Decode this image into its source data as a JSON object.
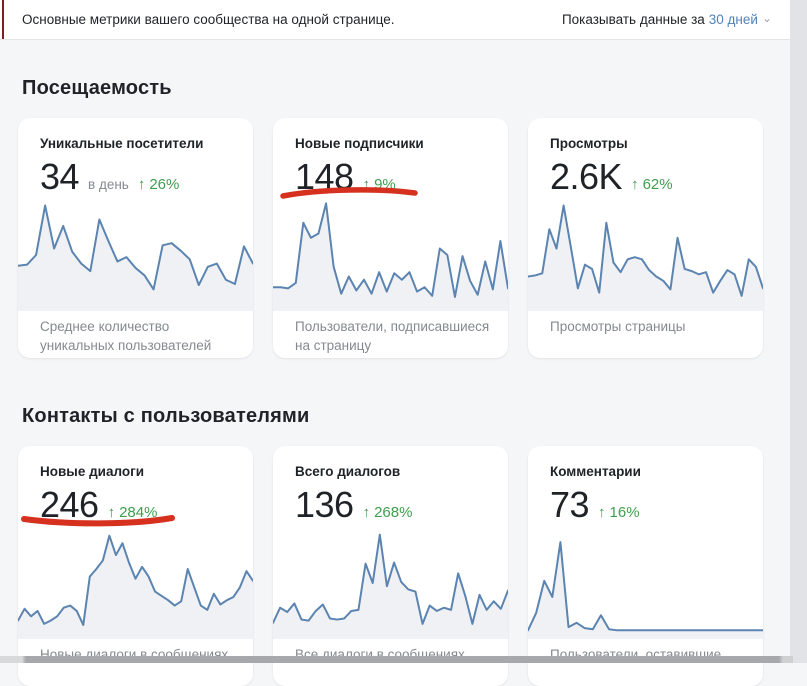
{
  "header": {
    "description": "Основные метрики вашего сообщества на одной странице.",
    "period_label": "Показывать данные за",
    "period_value": "30 дней"
  },
  "icons": {
    "arrow_up": "↑",
    "chevron_down": "⌄"
  },
  "colors": {
    "bg": "#f5f6f8",
    "card_bg": "#ffffff",
    "text": "#1f2227",
    "muted": "#85898f",
    "green": "#3f9e4d",
    "link_blue": "#5181b8",
    "spark_line": "#5b84b1",
    "spark_fill": "#f0f1f4",
    "marker_red": "#d6301f",
    "divider": "#e3e4e8",
    "gutter": "#e2e3e6",
    "bottom_bar": "#a6a8ab",
    "left_tick": "#7a2020"
  },
  "sections": [
    {
      "title": "Посещаемость",
      "cards": [
        {
          "title": "Уникальные посетители",
          "value": "34",
          "value_suffix": "в день",
          "delta": "26%",
          "caption": "Среднее количество уникальных пользователей",
          "underlined": false
        },
        {
          "title": "Новые подписчики",
          "value": "148",
          "delta": "9%",
          "caption": "Пользователи, подписавшиеся на страницу",
          "underlined": true
        },
        {
          "title": "Просмотры",
          "value": "2.6K",
          "delta": "62%",
          "caption": "Просмотры страницы",
          "underlined": false
        }
      ]
    },
    {
      "title": "Контакты с пользователями",
      "cards": [
        {
          "title": "Новые диалоги",
          "value": "246",
          "delta": "284%",
          "caption": "Новые диалоги в сообщениях",
          "underlined": true
        },
        {
          "title": "Всего диалогов",
          "value": "136",
          "delta": "268%",
          "caption": "Все диалоги в сообщениях",
          "underlined": false
        },
        {
          "title": "Комментарии",
          "value": "73",
          "delta": "16%",
          "caption": "Пользователи, оставившие",
          "underlined": false
        }
      ]
    }
  ],
  "chart_data": [
    {
      "type": "line",
      "title": "Уникальные посетители",
      "x": "30 дней (без подписей осей)",
      "ylim": [
        0,
        10
      ],
      "unit": "relative",
      "values": [
        4.0,
        4.1,
        5.0,
        9.6,
        5.6,
        7.7,
        5.3,
        4.2,
        3.5,
        8.3,
        6.3,
        4.4,
        4.8,
        3.8,
        3.1,
        1.8,
        5.9,
        6.1,
        5.4,
        4.6,
        2.2,
        3.9,
        4.2,
        2.7,
        2.3,
        5.8,
        4.2
      ]
    },
    {
      "type": "line",
      "title": "Новые подписчики",
      "x": "30 дней (без подписей осей)",
      "ylim": [
        0,
        10
      ],
      "unit": "relative",
      "values": [
        2.0,
        2.0,
        1.9,
        2.4,
        8.0,
        6.6,
        7.0,
        9.8,
        3.9,
        1.4,
        3.0,
        1.7,
        2.7,
        1.4,
        3.4,
        1.6,
        3.3,
        2.7,
        3.4,
        1.6,
        2.0,
        1.2,
        5.6,
        5.0,
        1.1,
        4.9,
        2.6,
        1.3,
        4.4,
        1.8,
        6.3,
        1.9
      ]
    },
    {
      "type": "line",
      "title": "Просмотры",
      "x": "30 дней (без подписей осей)",
      "ylim": [
        0,
        10
      ],
      "unit": "relative",
      "values": [
        3.0,
        3.1,
        3.3,
        7.4,
        5.6,
        9.6,
        5.8,
        1.9,
        4.1,
        3.7,
        1.5,
        8.0,
        4.3,
        3.4,
        4.6,
        4.8,
        4.6,
        3.6,
        3.0,
        2.6,
        1.8,
        6.6,
        3.7,
        3.5,
        3.2,
        3.4,
        1.5,
        2.6,
        3.6,
        3.2,
        1.2,
        4.6,
        3.9,
        1.9
      ]
    },
    {
      "type": "line",
      "title": "Новые диалоги",
      "x": "30 дней (без подписей осей)",
      "ylim": [
        0,
        10
      ],
      "unit": "relative",
      "values": [
        1.5,
        2.6,
        1.9,
        2.4,
        1.2,
        1.5,
        1.9,
        2.7,
        2.9,
        2.4,
        1.1,
        5.6,
        6.3,
        7.1,
        9.4,
        7.6,
        8.7,
        6.9,
        5.4,
        6.5,
        5.6,
        4.2,
        3.8,
        3.4,
        2.9,
        3.3,
        6.3,
        4.6,
        2.9,
        2.5,
        4.0,
        3.0,
        3.4,
        3.7,
        4.6,
        6.1,
        5.2
      ]
    },
    {
      "type": "line",
      "title": "Всего диалогов",
      "x": "30 дней (без подписей осей)",
      "ylim": [
        0,
        10
      ],
      "unit": "relative",
      "values": [
        1.3,
        2.7,
        2.3,
        3.1,
        1.6,
        1.5,
        2.4,
        3.0,
        1.7,
        1.6,
        1.7,
        2.4,
        2.5,
        6.8,
        5.0,
        9.5,
        4.7,
        6.9,
        5.1,
        4.4,
        4.2,
        1.2,
        2.9,
        2.4,
        2.7,
        2.5,
        5.9,
        3.8,
        1.2,
        3.9,
        2.5,
        3.3,
        2.6,
        4.3
      ]
    },
    {
      "type": "line",
      "title": "Комментарии",
      "x": "30 дней (без подписей осей)",
      "ylim": [
        0,
        10
      ],
      "unit": "relative",
      "values": [
        0.6,
        2.2,
        5.2,
        3.7,
        8.8,
        0.9,
        1.3,
        0.8,
        0.7,
        2.0,
        0.7,
        0.6,
        0.6,
        0.6,
        0.6,
        0.6,
        0.6,
        0.6,
        0.6,
        0.6,
        0.6,
        0.6,
        0.6,
        0.6,
        0.6,
        0.6,
        0.6,
        0.6,
        0.6,
        0.6
      ]
    }
  ]
}
